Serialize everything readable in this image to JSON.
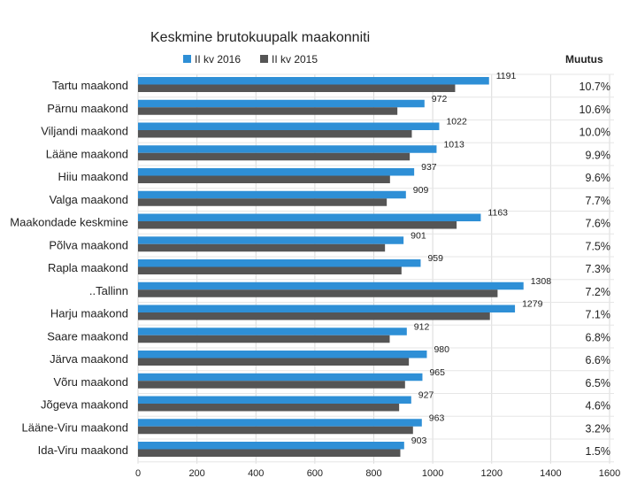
{
  "chart_data": {
    "type": "bar",
    "orientation": "horizontal",
    "title": "Keskmine brutokuupalk maakonniti",
    "change_header": "Muutus",
    "categories": [
      "Tartu maakond",
      "Pärnu maakond",
      "Viljandi maakond",
      "Lääne maakond",
      "Hiiu maakond",
      "Valga maakond",
      "Maakondade keskmine",
      "Põlva maakond",
      "Rapla maakond",
      "..Tallinn",
      "Harju maakond",
      "Saare maakond",
      "Järva maakond",
      "Võru maakond",
      "Jõgeva maakond",
      "Lääne-Viru maakond",
      "Ida-Viru maakond"
    ],
    "series": [
      {
        "name": "II kv 2016",
        "color": "#2e8fd6",
        "values": [
          1191,
          972,
          1022,
          1013,
          937,
          909,
          1163,
          901,
          959,
          1308,
          1279,
          912,
          980,
          965,
          927,
          963,
          903
        ]
      },
      {
        "name": "II kv 2015",
        "color": "#555555",
        "values": [
          1076,
          880,
          929,
          922,
          855,
          844,
          1081,
          838,
          894,
          1220,
          1194,
          854,
          919,
          906,
          886,
          933,
          890
        ]
      }
    ],
    "changes": [
      "10.7%",
      "10.6%",
      "10.0%",
      "9.9%",
      "9.6%",
      "7.7%",
      "7.6%",
      "7.5%",
      "7.3%",
      "7.2%",
      "7.1%",
      "6.8%",
      "6.6%",
      "6.5%",
      "4.6%",
      "3.2%",
      "1.5%"
    ],
    "x_ticks": [
      0,
      200,
      400,
      600,
      800,
      1000,
      1200,
      1400,
      1600
    ],
    "xlim": [
      0,
      1600
    ],
    "grid": true,
    "legend_position": "top"
  }
}
